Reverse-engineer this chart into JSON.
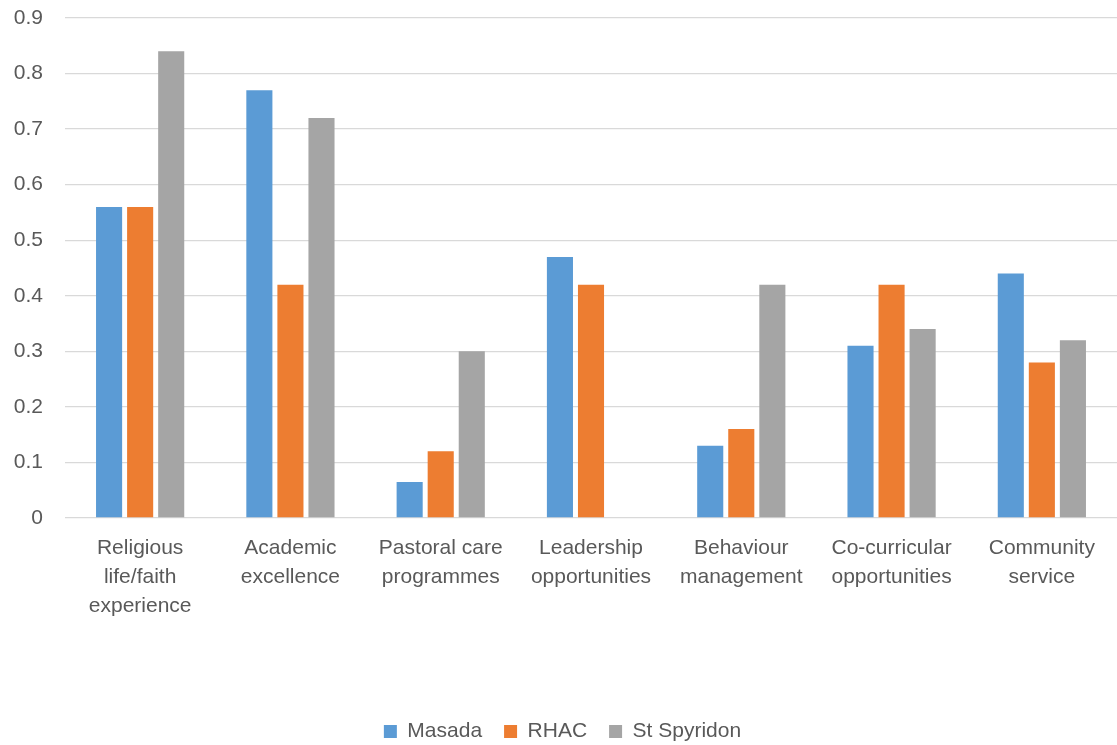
{
  "chart_data": {
    "type": "bar",
    "categories": [
      "Religious life/faith experience",
      "Academic excellence",
      "Pastoral care programmes",
      "Leadership opportunities",
      "Behaviour management",
      "Co-curricular opportunities",
      "Community service"
    ],
    "series": [
      {
        "name": "Masada",
        "color": "#5b9bd5",
        "values": [
          0.56,
          0.77,
          0.065,
          0.47,
          0.13,
          0.31,
          0.44
        ]
      },
      {
        "name": "RHAC",
        "color": "#ed7d31",
        "values": [
          0.56,
          0.42,
          0.12,
          0.42,
          0.16,
          0.42,
          0.28
        ]
      },
      {
        "name": "St Spyridon",
        "color": "#a5a5a5",
        "values": [
          0.84,
          0.72,
          0.3,
          0,
          0.42,
          0.34,
          0.32
        ]
      }
    ],
    "ylim": [
      0,
      0.9
    ],
    "yticks": [
      0,
      0.1,
      0.2,
      0.3,
      0.4,
      0.5,
      0.6,
      0.7,
      0.8,
      0.9
    ],
    "grid": "y",
    "legend": "bottom"
  }
}
